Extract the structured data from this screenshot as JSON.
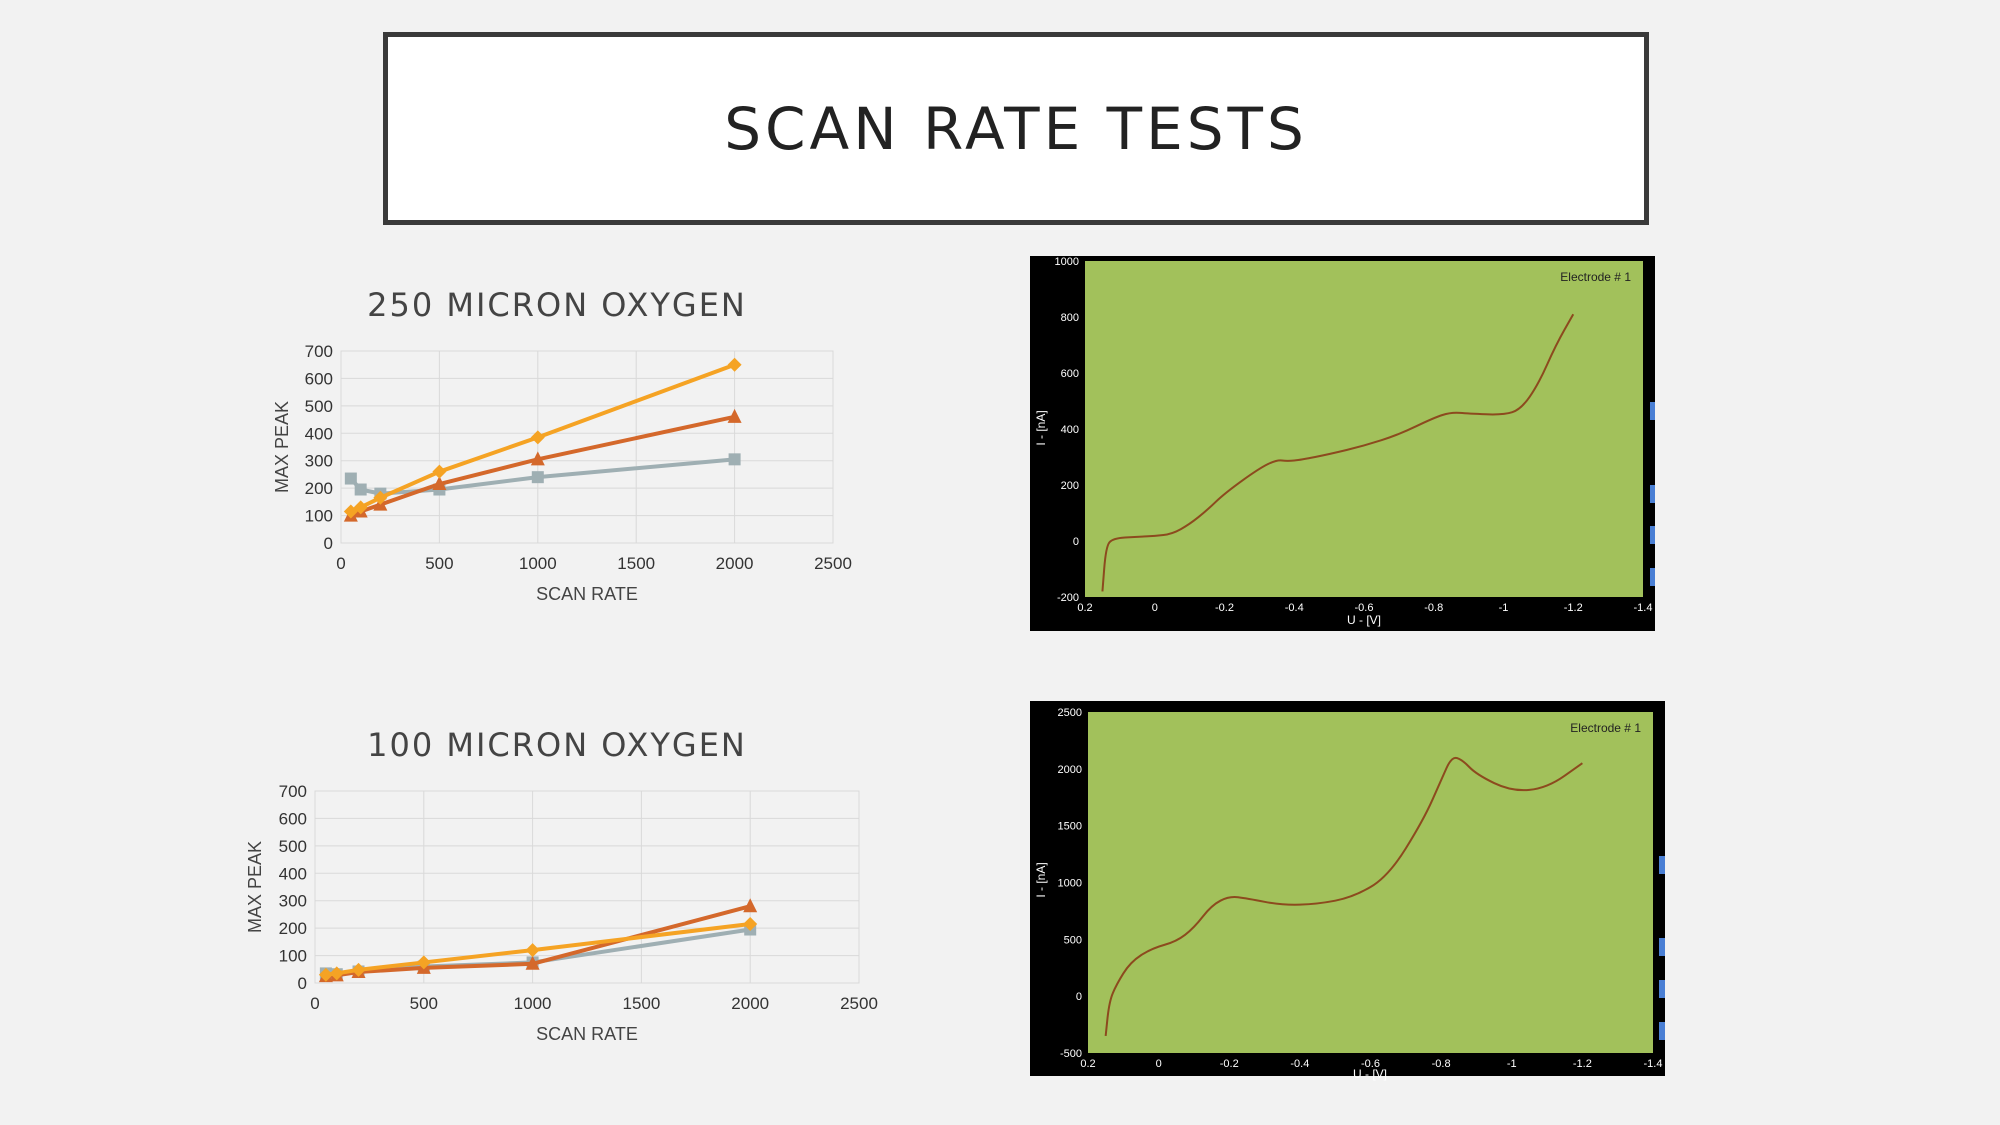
{
  "slide": {
    "title": "SCAN RATE TESTS"
  },
  "colors": {
    "gray": "#9fafb3",
    "darkorange": "#d4682b",
    "orange": "#f5a324",
    "plot_bg": "#a2c15b",
    "curve": "#8c4a1e"
  },
  "chart_data": [
    {
      "type": "line",
      "title": "250 MICRON OXYGEN",
      "xlabel": "SCAN RATE",
      "ylabel": "MAX PEAK",
      "xlim": [
        0,
        2500
      ],
      "ylim": [
        0,
        700
      ],
      "xticks": [
        "0",
        "500",
        "1000",
        "1500",
        "2000",
        "2500"
      ],
      "yticks": [
        "0",
        "100",
        "200",
        "300",
        "400",
        "500",
        "600",
        "700"
      ],
      "grid": true,
      "series": [
        {
          "marker": "square",
          "color": "#9fafb3",
          "x": [
            50,
            100,
            200,
            500,
            1000,
            2000
          ],
          "y": [
            235,
            195,
            180,
            195,
            240,
            305
          ]
        },
        {
          "marker": "triangle",
          "color": "#d4682b",
          "x": [
            50,
            100,
            200,
            500,
            1000,
            2000
          ],
          "y": [
            100,
            115,
            140,
            215,
            305,
            460
          ]
        },
        {
          "marker": "diamond",
          "color": "#f5a324",
          "x": [
            50,
            100,
            200,
            500,
            1000,
            2000
          ],
          "y": [
            115,
            130,
            165,
            260,
            385,
            650
          ]
        }
      ]
    },
    {
      "type": "line",
      "title": "100 MICRON OXYGEN",
      "xlabel": "SCAN RATE",
      "ylabel": "MAX PEAK",
      "xlim": [
        0,
        2500
      ],
      "ylim": [
        0,
        700
      ],
      "xticks": [
        "0",
        "500",
        "1000",
        "1500",
        "2000",
        "2500"
      ],
      "yticks": [
        "0",
        "100",
        "200",
        "300",
        "400",
        "500",
        "600",
        "700"
      ],
      "grid": true,
      "series": [
        {
          "marker": "square",
          "color": "#9fafb3",
          "x": [
            50,
            100,
            200,
            500,
            1000,
            2000
          ],
          "y": [
            35,
            32,
            42,
            60,
            75,
            195
          ]
        },
        {
          "marker": "triangle",
          "color": "#d4682b",
          "x": [
            50,
            100,
            200,
            500,
            1000,
            2000
          ],
          "y": [
            25,
            28,
            40,
            55,
            70,
            280
          ]
        },
        {
          "marker": "diamond",
          "color": "#f5a324",
          "x": [
            50,
            100,
            200,
            500,
            1000,
            2000
          ],
          "y": [
            30,
            35,
            48,
            75,
            120,
            215
          ]
        }
      ]
    },
    {
      "type": "line",
      "title": "",
      "annotation": "Electrode # 1",
      "xlabel": "U - [V]",
      "ylabel": "I - [nA]",
      "xlim": [
        0.2,
        -1.4
      ],
      "ylim": [
        -200,
        1000
      ],
      "xticks": [
        "0.2",
        "0",
        "-0.2",
        "-0.4",
        "-0.6",
        "-0.8",
        "-1",
        "-1.2",
        "-1.4"
      ],
      "yticks": [
        "-200",
        "0",
        "200",
        "400",
        "600",
        "800",
        "1000"
      ],
      "grid": false,
      "series": [
        {
          "color": "#8c4a1e",
          "x": [
            0.15,
            0.14,
            0.12,
            0.05,
            0.0,
            -0.05,
            -0.1,
            -0.15,
            -0.2,
            -0.3,
            -0.35,
            -0.38,
            -0.42,
            -0.5,
            -0.6,
            -0.7,
            -0.8,
            -0.85,
            -0.9,
            -1.0,
            -1.05,
            -1.1,
            -1.15,
            -1.2
          ],
          "y": [
            -180,
            -20,
            10,
            15,
            18,
            25,
            60,
            110,
            170,
            260,
            290,
            285,
            290,
            310,
            340,
            380,
            440,
            460,
            455,
            450,
            470,
            560,
            700,
            810
          ]
        }
      ]
    },
    {
      "type": "line",
      "title": "",
      "annotation": "Electrode # 1",
      "xlabel": "U - [V]",
      "ylabel": "I - [nA]",
      "xlim": [
        0.2,
        -1.4
      ],
      "ylim": [
        -500,
        2500
      ],
      "xticks": [
        "0.2",
        "0",
        "-0.2",
        "-0.4",
        "-0.6",
        "-0.8",
        "-1",
        "-1.2",
        "-1.4"
      ],
      "yticks": [
        "-500",
        "0",
        "500",
        "1000",
        "1500",
        "2000",
        "2500"
      ],
      "grid": false,
      "series": [
        {
          "color": "#8c4a1e",
          "x": [
            0.15,
            0.14,
            0.12,
            0.08,
            0.02,
            -0.05,
            -0.1,
            -0.15,
            -0.2,
            -0.25,
            -0.35,
            -0.45,
            -0.55,
            -0.65,
            -0.75,
            -0.8,
            -0.83,
            -0.86,
            -0.9,
            -1.0,
            -1.1,
            -1.2
          ],
          "y": [
            -350,
            -50,
            100,
            300,
            420,
            480,
            600,
            800,
            880,
            860,
            800,
            810,
            870,
            1050,
            1550,
            1900,
            2110,
            2080,
            1950,
            1800,
            1830,
            2050
          ]
        }
      ]
    }
  ]
}
